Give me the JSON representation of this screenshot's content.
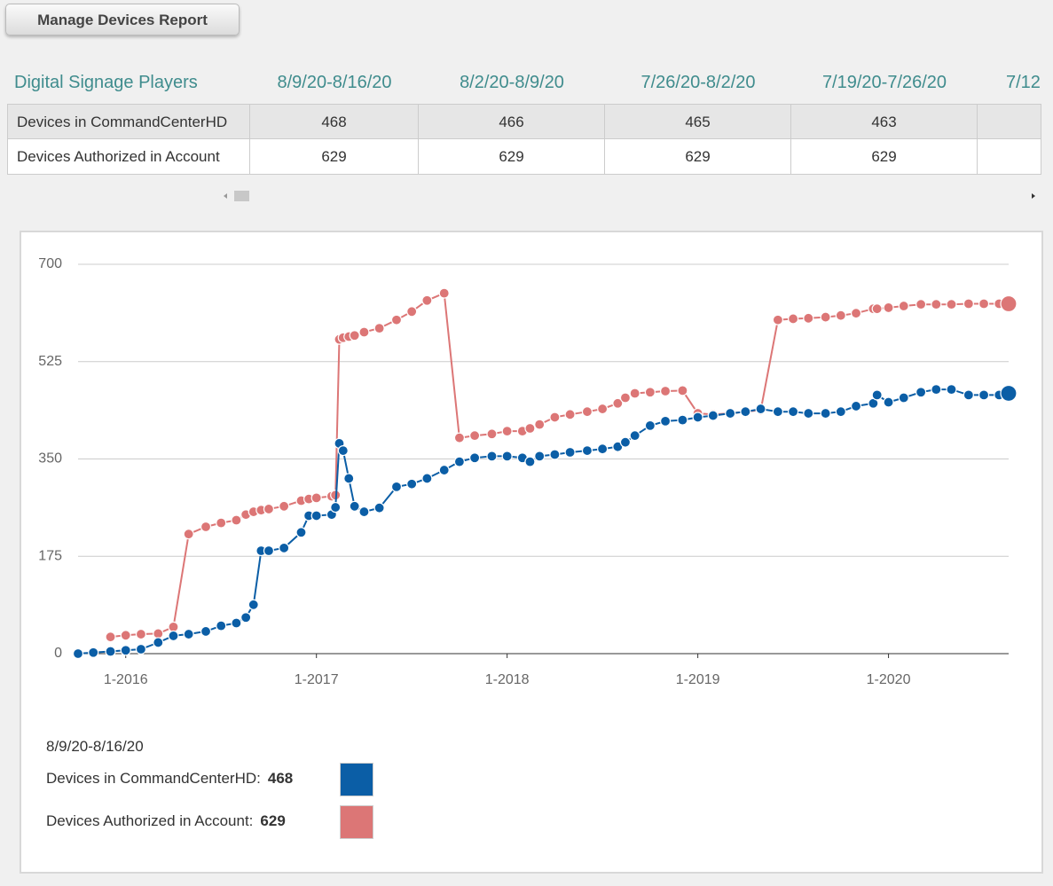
{
  "header": {
    "button": "Manage Devices Report"
  },
  "table": {
    "columns": [
      "Digital Signage Players",
      "8/9/20-8/16/20",
      "8/2/20-8/9/20",
      "7/26/20-8/2/20",
      "7/19/20-7/26/20",
      "7/12"
    ],
    "rows": [
      [
        "Devices in CommandCenterHD",
        468,
        466,
        465,
        463
      ],
      [
        "Devices Authorized in Account",
        629,
        629,
        629,
        629
      ]
    ]
  },
  "chart_data": {
    "type": "line",
    "x": [
      2015.75,
      2015.83,
      2015.92,
      2016.0,
      2016.08,
      2016.17,
      2016.25,
      2016.33,
      2016.42,
      2016.5,
      2016.58,
      2016.63,
      2016.67,
      2016.71,
      2016.75,
      2016.83,
      2016.92,
      2016.96,
      2017.0,
      2017.08,
      2017.1,
      2017.12,
      2017.14,
      2017.17,
      2017.2,
      2017.25,
      2017.33,
      2017.42,
      2017.5,
      2017.58,
      2017.67,
      2017.75,
      2017.83,
      2017.92,
      2018.0,
      2018.08,
      2018.12,
      2018.17,
      2018.25,
      2018.33,
      2018.42,
      2018.5,
      2018.58,
      2018.62,
      2018.67,
      2018.75,
      2018.83,
      2018.92,
      2019.0,
      2019.08,
      2019.17,
      2019.25,
      2019.33,
      2019.42,
      2019.5,
      2019.58,
      2019.67,
      2019.75,
      2019.83,
      2019.92,
      2019.94,
      2020.0,
      2020.08,
      2020.17,
      2020.25,
      2020.33,
      2020.42,
      2020.5,
      2020.58,
      2020.63
    ],
    "series": [
      {
        "name": "Devices Authorized in Account",
        "color": "#dc7676",
        "values": [
          null,
          null,
          30,
          33,
          35,
          36,
          48,
          215,
          228,
          235,
          240,
          250,
          255,
          258,
          260,
          265,
          275,
          278,
          280,
          283,
          285,
          565,
          568,
          570,
          572,
          578,
          585,
          600,
          615,
          635,
          648,
          388,
          392,
          395,
          400,
          400,
          405,
          412,
          425,
          430,
          435,
          440,
          450,
          460,
          468,
          470,
          472,
          473,
          432,
          430,
          432,
          435,
          438,
          600,
          602,
          603,
          605,
          608,
          612,
          620,
          620,
          622,
          625,
          628,
          628,
          628,
          629,
          629,
          629,
          629
        ]
      },
      {
        "name": "Devices in CommandCenterHD",
        "color": "#0b5ea6",
        "values": [
          0,
          2,
          4,
          6,
          8,
          20,
          32,
          35,
          40,
          50,
          55,
          65,
          88,
          185,
          185,
          190,
          218,
          248,
          248,
          250,
          263,
          378,
          365,
          315,
          265,
          255,
          262,
          300,
          305,
          315,
          330,
          345,
          352,
          355,
          355,
          352,
          345,
          355,
          358,
          362,
          365,
          368,
          372,
          380,
          392,
          410,
          418,
          420,
          425,
          428,
          432,
          435,
          440,
          435,
          435,
          432,
          432,
          435,
          445,
          450,
          465,
          452,
          460,
          470,
          475,
          475,
          465,
          465,
          465,
          468
        ]
      }
    ],
    "xlim": [
      2015.75,
      2020.63
    ],
    "xticks": [
      {
        "value": 2016,
        "label": "1-2016"
      },
      {
        "value": 2017,
        "label": "1-2017"
      },
      {
        "value": 2018,
        "label": "1-2018"
      },
      {
        "value": 2019,
        "label": "1-2019"
      },
      {
        "value": 2020,
        "label": "1-2020"
      }
    ],
    "ylim": [
      0,
      700
    ],
    "yticks": [
      0,
      175,
      350,
      525,
      700
    ],
    "grid": true
  },
  "tooltip": {
    "date": "8/9/20-8/16/20",
    "items": [
      {
        "label": "Devices in CommandCenterHD:",
        "value": 468,
        "color": "#0b5ea6"
      },
      {
        "label": "Devices Authorized in Account:",
        "value": 629,
        "color": "#dc7676"
      }
    ]
  }
}
